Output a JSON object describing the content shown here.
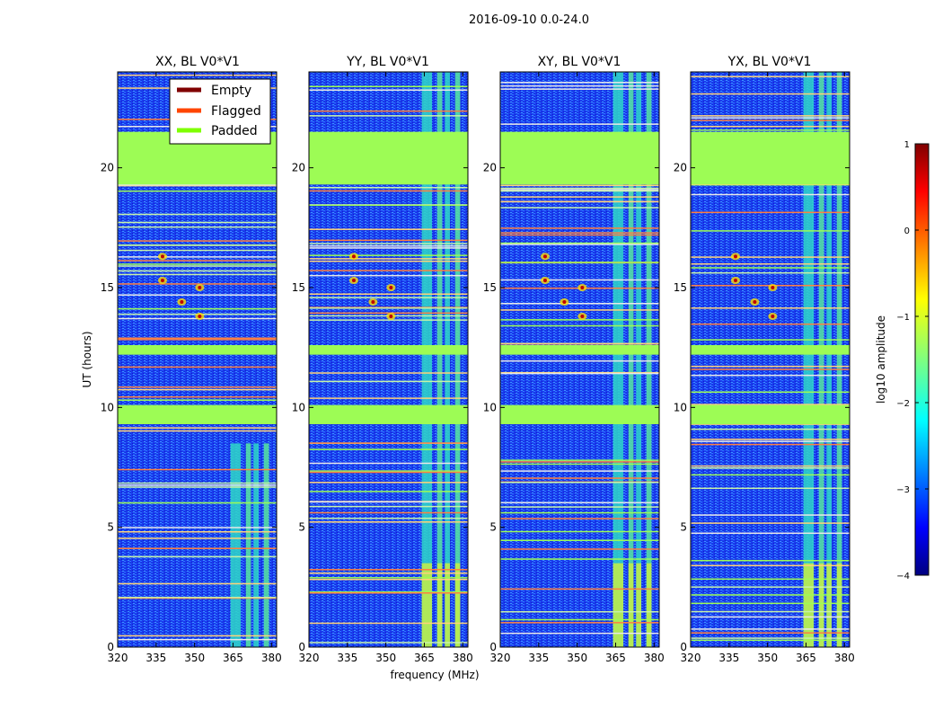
{
  "chart_data": {
    "type": "heatmap",
    "suptitle": "2016-09-10 0.0-24.0",
    "xlabel": "frequency (MHz)",
    "ylabel": "UT (hours)",
    "xlim": [
      320,
      382
    ],
    "ylim": [
      0,
      24
    ],
    "xticks": [
      320,
      335,
      350,
      365,
      380
    ],
    "yticks": [
      0,
      5,
      10,
      15,
      20
    ],
    "panels": [
      {
        "title": "XX, BL V0*V1"
      },
      {
        "title": "YY, BL V0*V1"
      },
      {
        "title": "XY, BL V0*V1"
      },
      {
        "title": "YX, BL V0*V1"
      }
    ],
    "legend": {
      "location": "top-right of first panel",
      "entries": [
        {
          "label": "Empty",
          "color": "#800000"
        },
        {
          "label": "Flagged",
          "color": "#ff4500"
        },
        {
          "label": "Padded",
          "color": "#7fff00"
        }
      ]
    },
    "colorbar": {
      "label": "log10 amplitude",
      "min": -4,
      "max": 1,
      "ticks": [
        "1",
        "0",
        "−1",
        "−2",
        "−3",
        "−4"
      ],
      "colormap": "jet"
    },
    "padded_time_ranges_hours": [
      [
        19.3,
        21.5
      ],
      [
        9.3,
        10.1
      ],
      [
        12.2,
        12.6
      ]
    ],
    "rfi_frequency_bands_mhz": [
      [
        364,
        368
      ],
      [
        370,
        372
      ],
      [
        373,
        375
      ],
      [
        377,
        379
      ]
    ]
  }
}
